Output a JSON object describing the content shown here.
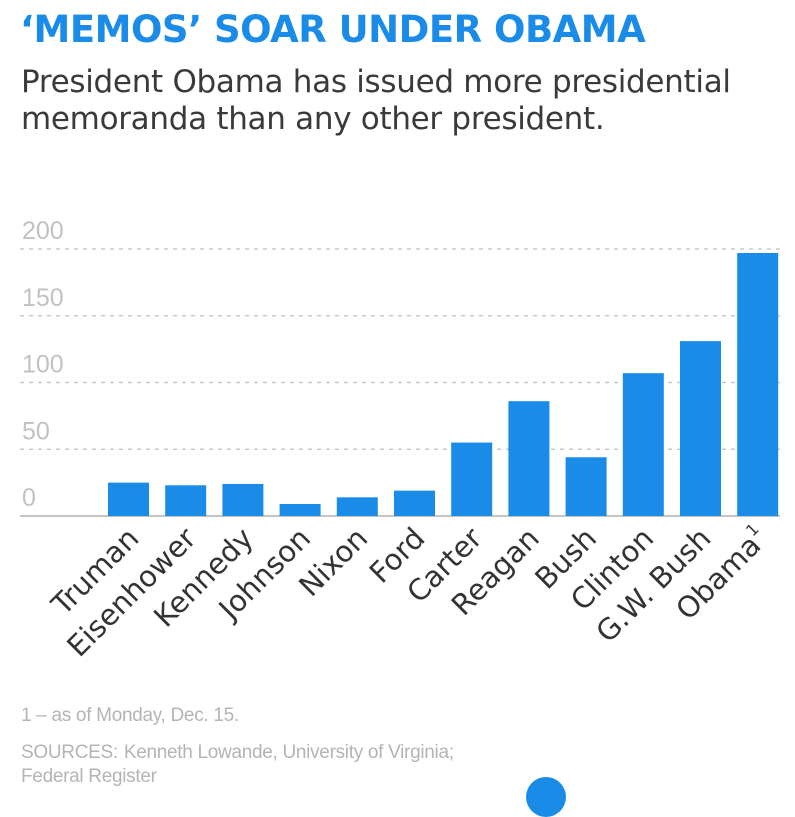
{
  "header": {
    "title": "‘MEMOS’ SOAR UNDER OBAMA",
    "subtitle": "President Obama has issued more presidential memoranda than any other president."
  },
  "chart_data": {
    "type": "bar",
    "categories": [
      "Truman",
      "Eisenhower",
      "Kennedy",
      "Johnson",
      "Nixon",
      "Ford",
      "Carter",
      "Reagan",
      "Bush",
      "Clinton",
      "G.W. Bush",
      "Obama"
    ],
    "category_superscripts": [
      "",
      "",
      "",
      "",
      "",
      "",
      "",
      "",
      "",
      "",
      "",
      "1"
    ],
    "values": [
      25,
      23,
      24,
      9,
      14,
      19,
      55,
      86,
      44,
      107,
      131,
      197
    ],
    "ylim": [
      0,
      200
    ],
    "yticks": [
      0,
      50,
      100,
      150,
      200
    ],
    "grid": true,
    "bar_color": "#1a8ce8",
    "legend": "none"
  },
  "footer": {
    "footnote": "1 – as of Monday, Dec. 15.",
    "sources_label": "SOURCES:",
    "sources_text": "Kenneth Lowande, University of Virginia; Federal Register"
  },
  "colors": {
    "accent": "#1a8ce8",
    "title": "#1a8ce8",
    "body_text": "#3a3a3a",
    "muted_text": "#b4b4b4",
    "gridline": "#c8c8c8"
  },
  "icons": {
    "badge": "circle-badge"
  }
}
